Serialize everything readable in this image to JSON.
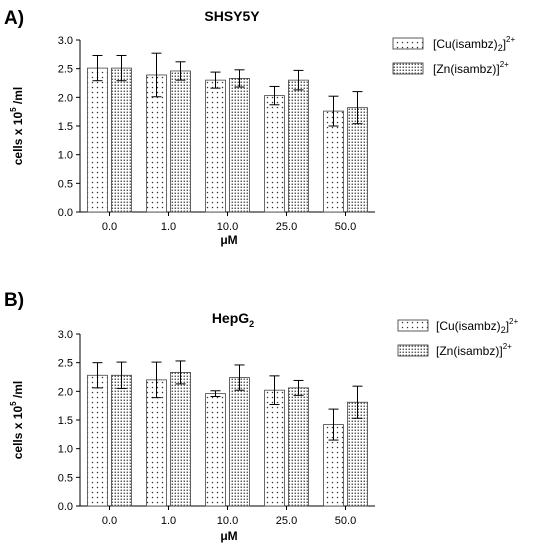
{
  "panels": [
    {
      "label": "A)",
      "title": "SHSY5Y"
    },
    {
      "label": "B)",
      "title": "HepG",
      "title_subscript": "2"
    }
  ],
  "chart_data": [
    {
      "type": "bar",
      "title": "SHSY5Y",
      "xlabel": "μM",
      "ylabel": {
        "main": "cells x 10",
        "superscript": "5",
        "unit": " /ml"
      },
      "categories": [
        "0.0",
        "1.0",
        "10.0",
        "25.0",
        "50.0"
      ],
      "ylim": [
        0,
        3.0
      ],
      "yticks": [
        "0.0",
        "0.5",
        "1.0",
        "1.5",
        "2.0",
        "2.5",
        "3.0"
      ],
      "series": [
        {
          "name": "[Cu(isambz)2]2+",
          "legend": {
            "pre": "[Cu(isambz)",
            "sub": "2",
            "mid": "]",
            "sup": "2+"
          },
          "pattern": "sparse-dots",
          "values": [
            2.51,
            2.39,
            2.3,
            2.03,
            1.76
          ],
          "errors": [
            0.22,
            0.38,
            0.14,
            0.16,
            0.26
          ]
        },
        {
          "name": "[Zn(isambz)]2+",
          "legend": {
            "pre": "[Zn(isambz)",
            "sub": "",
            "mid": "]",
            "sup": "2+"
          },
          "pattern": "dense-dots",
          "values": [
            2.51,
            2.46,
            2.33,
            2.3,
            1.82
          ],
          "errors": [
            0.22,
            0.16,
            0.15,
            0.17,
            0.28
          ]
        }
      ],
      "legend_position": "top-right",
      "grid": false
    },
    {
      "type": "bar",
      "title": "HepG2",
      "xlabel": "μM",
      "ylabel": {
        "main": "cells x 10",
        "superscript": "5",
        "unit": " /ml"
      },
      "categories": [
        "0.0",
        "1.0",
        "10.0",
        "25.0",
        "50.0"
      ],
      "ylim": [
        0,
        3.0
      ],
      "yticks": [
        "0.0",
        "0.5",
        "1.0",
        "1.5",
        "2.0",
        "2.5",
        "3.0"
      ],
      "series": [
        {
          "name": "[Cu(isambz)2]2+",
          "legend": {
            "pre": "[Cu(isambz)",
            "sub": "2",
            "mid": "]",
            "sup": "2+"
          },
          "pattern": "sparse-dots",
          "values": [
            2.28,
            2.2,
            1.96,
            2.02,
            1.42
          ],
          "errors": [
            0.22,
            0.31,
            0.05,
            0.25,
            0.27
          ]
        },
        {
          "name": "[Zn(isambz)]2+",
          "legend": {
            "pre": "[Zn(isambz)",
            "sub": "",
            "mid": "]",
            "sup": "2+"
          },
          "pattern": "dense-dots",
          "values": [
            2.28,
            2.33,
            2.24,
            2.06,
            1.81
          ],
          "errors": [
            0.23,
            0.2,
            0.22,
            0.13,
            0.28
          ]
        }
      ],
      "legend_position": "top-right",
      "grid": false
    }
  ]
}
